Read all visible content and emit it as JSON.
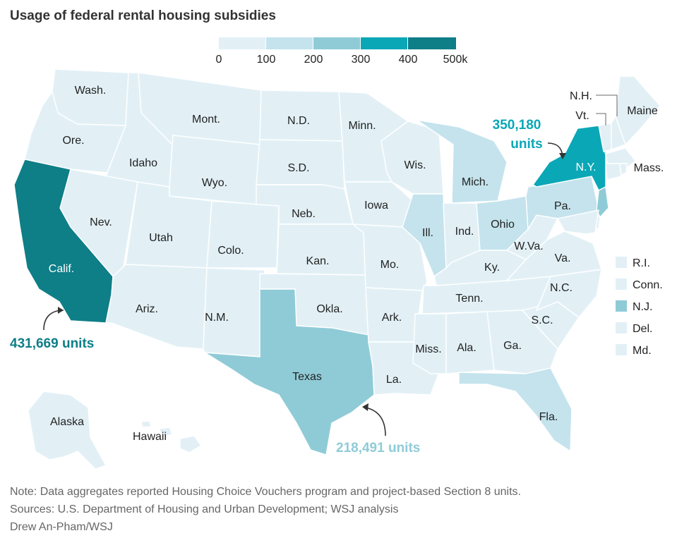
{
  "title": "Usage of federal rental housing subsidies",
  "colors": {
    "bin0": "#e2f0f6",
    "bin1": "#c4e3ed",
    "bin2": "#8fcbd7",
    "bin3": "#0aa7b7",
    "bin4": "#0e7e87",
    "border": "#ffffff"
  },
  "legend": {
    "ticks": [
      "0",
      "100",
      "200",
      "300",
      "400",
      "500k"
    ]
  },
  "states": {
    "wa": "Wash.",
    "or": "Ore.",
    "ca": "Calif.",
    "nv": "Nev.",
    "id": "Idaho",
    "mt": "Mont.",
    "wy": "Wyo.",
    "ut": "Utah",
    "az": "Ariz.",
    "co": "Colo.",
    "nm": "N.M.",
    "nd": "N.D.",
    "sd": "S.D.",
    "ne": "Neb.",
    "ks": "Kan.",
    "ok": "Okla.",
    "tx": "Texas",
    "mn": "Minn.",
    "ia": "Iowa",
    "mo": "Mo.",
    "ar": "Ark.",
    "la": "La.",
    "wi": "Wis.",
    "il": "Ill.",
    "mi": "Mich.",
    "in": "Ind.",
    "oh": "Ohio",
    "ky": "Ky.",
    "tn": "Tenn.",
    "ms": "Miss.",
    "al": "Ala.",
    "ga": "Ga.",
    "fl": "Fla.",
    "sc": "S.C.",
    "nc": "N.C.",
    "va": "Va.",
    "wv": "W.Va.",
    "pa": "Pa.",
    "ny": "N.Y.",
    "vt": "Vt.",
    "nh": "N.H.",
    "me": "Maine",
    "ma": "Mass.",
    "ak": "Alaska",
    "hi": "Hawaii"
  },
  "small_states": [
    "R.I.",
    "Conn.",
    "N.J.",
    "Del.",
    "Md."
  ],
  "callouts": {
    "ca": "431,669 units",
    "ny_line1": "350,180",
    "ny_line2": "units",
    "tx": "218,491 units"
  },
  "notes": {
    "note": "Note: Data aggregates reported Housing Choice Vouchers program and project-based Section 8 units.",
    "sources": "Sources: U.S. Department of Housing and Urban Development; WSJ analysis",
    "credit": "Drew An-Pham/WSJ"
  }
}
